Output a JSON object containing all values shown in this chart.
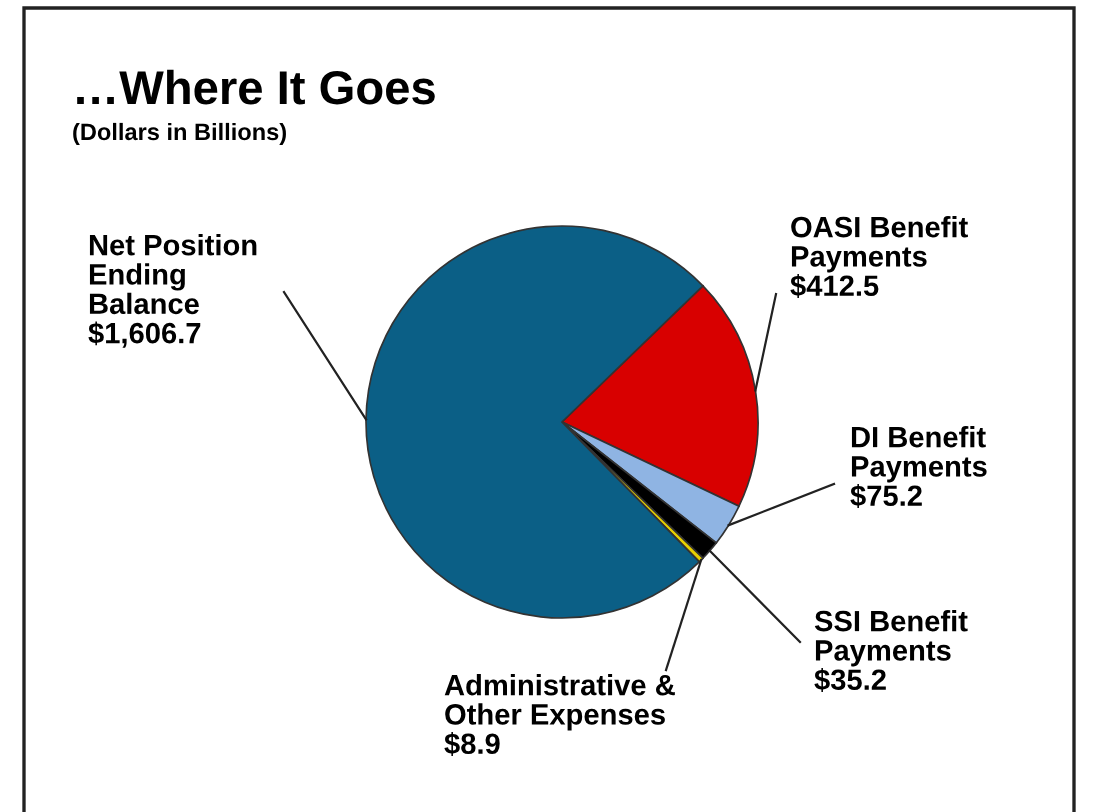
{
  "chart_data": {
    "type": "pie",
    "title": "…Where It Goes",
    "subtitle": "(Dollars in Billions)",
    "categories": [
      "OASI Benefit\nPayments",
      "DI Benefit\nPayments",
      "SSI Benefit\nPayments",
      "Administrative &\nOther Expenses",
      "Net Position\nEnding\nBalance"
    ],
    "values": [
      412.5,
      75.2,
      35.2,
      8.9,
      1606.7
    ],
    "value_labels": [
      "$412.5",
      "$75.2",
      "$35.2",
      "$8.9",
      "$1,606.7"
    ],
    "colors": [
      "#d80000",
      "#8fb4e3",
      "#000000",
      "#e8d000",
      "#0b5f86"
    ],
    "legend": false
  }
}
